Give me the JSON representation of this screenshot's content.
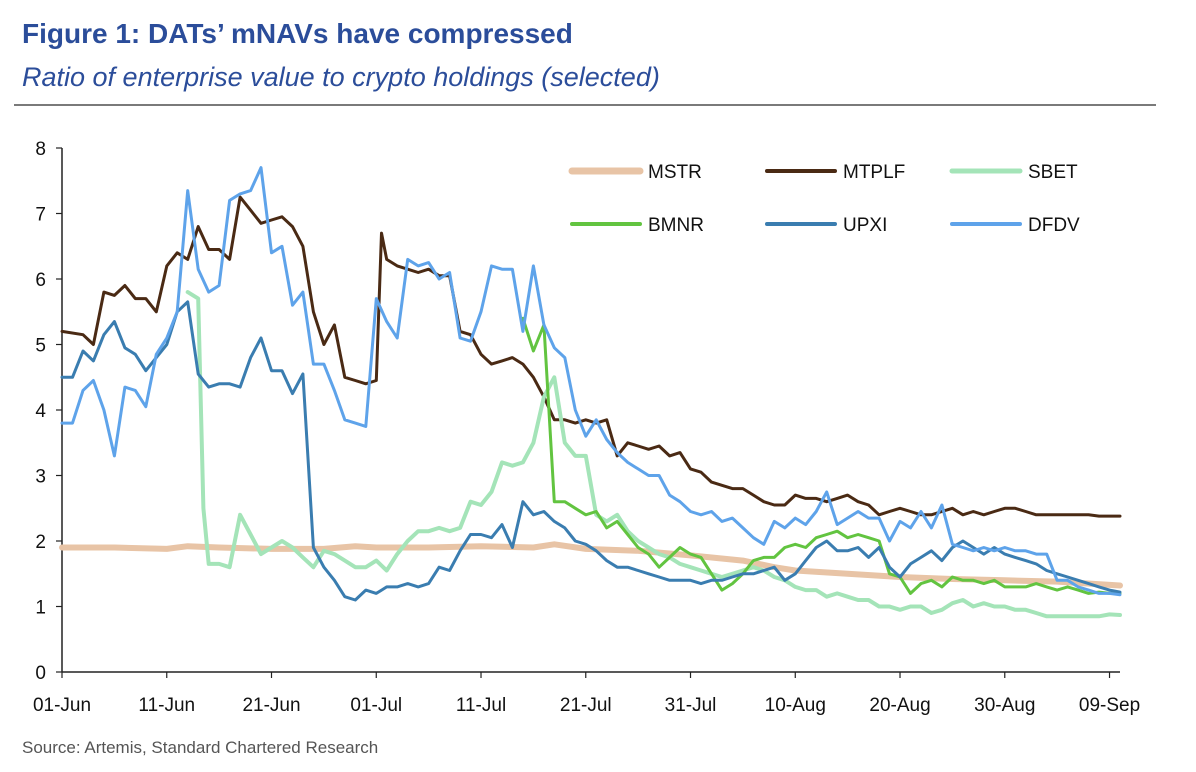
{
  "title": "Figure 1: DATs’ mNAVs have compressed",
  "subtitle": "Ratio of enterprise value to crypto holdings (selected)",
  "source": "Source: Artemis, Standard Chartered Research",
  "chart_data": {
    "type": "line",
    "xlabel": "",
    "ylabel": "",
    "ylim": [
      0,
      8
    ],
    "yticks": [
      0,
      1,
      2,
      3,
      4,
      5,
      6,
      7,
      8
    ],
    "xlim": [
      0,
      101
    ],
    "xtick_positions": [
      0,
      10,
      20,
      30,
      40,
      50,
      60,
      70,
      80,
      90,
      100
    ],
    "xtick_labels": [
      "01-Jun",
      "11-Jun",
      "21-Jun",
      "01-Jul",
      "11-Jul",
      "21-Jul",
      "31-Jul",
      "10-Aug",
      "20-Aug",
      "30-Aug",
      "09-Sep"
    ],
    "legend_position": "top-right",
    "series": [
      {
        "name": "MSTR",
        "color": "#e8c4a6",
        "width": 6,
        "x": [
          0,
          5,
          10,
          12,
          15,
          20,
          25,
          28,
          30,
          35,
          40,
          45,
          47,
          50,
          55,
          60,
          65,
          68,
          70,
          75,
          80,
          85,
          90,
          95,
          101
        ],
        "y": [
          1.9,
          1.9,
          1.88,
          1.92,
          1.9,
          1.88,
          1.88,
          1.92,
          1.9,
          1.9,
          1.92,
          1.9,
          1.95,
          1.88,
          1.85,
          1.78,
          1.7,
          1.6,
          1.55,
          1.5,
          1.45,
          1.42,
          1.4,
          1.38,
          1.32
        ]
      },
      {
        "name": "MTPLF",
        "color": "#4a2a14",
        "width": 3,
        "x": [
          0,
          2,
          3,
          4,
          5,
          6,
          7,
          8,
          9,
          10,
          11,
          12,
          13,
          14,
          15,
          16,
          17,
          18,
          19,
          20,
          21,
          22,
          23,
          24,
          25,
          26,
          27,
          28,
          29,
          30,
          30.5,
          31,
          32,
          33,
          34,
          35,
          36,
          37,
          38,
          39,
          40,
          41,
          42,
          43,
          44,
          45,
          46,
          47,
          48,
          49,
          50,
          51,
          52,
          53,
          54,
          55,
          56,
          57,
          58,
          59,
          60,
          61,
          62,
          63,
          64,
          65,
          66,
          67,
          68,
          69,
          70,
          71,
          72,
          73,
          74,
          75,
          76,
          77,
          78,
          79,
          80,
          81,
          82,
          83,
          84,
          85,
          86,
          87,
          88,
          89,
          90,
          91,
          92,
          93,
          94,
          95,
          96,
          97,
          98,
          99,
          100,
          101
        ],
        "y": [
          5.2,
          5.15,
          5,
          5.8,
          5.75,
          5.9,
          5.7,
          5.7,
          5.5,
          6.2,
          6.4,
          6.3,
          6.8,
          6.45,
          6.45,
          6.3,
          7.25,
          7.05,
          6.85,
          6.9,
          6.95,
          6.8,
          6.5,
          5.5,
          5,
          5.3,
          4.5,
          4.45,
          4.4,
          4.45,
          6.7,
          6.3,
          6.2,
          6.15,
          6.1,
          6.15,
          6.05,
          6.05,
          5.2,
          5.15,
          4.85,
          4.7,
          4.75,
          4.8,
          4.7,
          4.5,
          4.2,
          3.85,
          3.85,
          3.8,
          3.85,
          3.8,
          3.85,
          3.3,
          3.5,
          3.45,
          3.4,
          3.45,
          3.3,
          3.35,
          3.1,
          3.05,
          2.9,
          2.85,
          2.8,
          2.8,
          2.7,
          2.6,
          2.55,
          2.55,
          2.7,
          2.65,
          2.65,
          2.6,
          2.65,
          2.7,
          2.6,
          2.55,
          2.4,
          2.45,
          2.5,
          2.45,
          2.4,
          2.4,
          2.45,
          2.5,
          2.4,
          2.45,
          2.4,
          2.45,
          2.5,
          2.5,
          2.45,
          2.4,
          2.4,
          2.4,
          2.4,
          2.4,
          2.4,
          2.38,
          2.38,
          2.38
        ]
      },
      {
        "name": "SBET",
        "color": "#a4e4b8",
        "width": 4,
        "x": [
          12,
          13,
          13.5,
          14,
          15,
          16,
          17,
          18,
          19,
          20,
          21,
          22,
          23,
          24,
          25,
          26,
          27,
          28,
          29,
          30,
          31,
          32,
          33,
          34,
          35,
          36,
          37,
          38,
          39,
          40,
          41,
          42,
          43,
          44,
          45,
          46,
          47,
          48,
          49,
          50,
          51,
          52,
          53,
          54,
          55,
          56,
          57,
          58,
          59,
          60,
          61,
          62,
          63,
          64,
          65,
          66,
          67,
          68,
          69,
          70,
          71,
          72,
          73,
          74,
          75,
          76,
          77,
          78,
          79,
          80,
          81,
          82,
          83,
          84,
          85,
          86,
          87,
          88,
          89,
          90,
          91,
          92,
          93,
          94,
          95,
          96,
          97,
          98,
          99,
          100,
          101
        ],
        "y": [
          5.8,
          5.7,
          2.5,
          1.65,
          1.65,
          1.6,
          2.4,
          2.1,
          1.8,
          1.9,
          2,
          1.9,
          1.75,
          1.6,
          1.85,
          1.8,
          1.7,
          1.6,
          1.6,
          1.7,
          1.55,
          1.8,
          2,
          2.15,
          2.15,
          2.2,
          2.15,
          2.2,
          2.6,
          2.55,
          2.75,
          3.2,
          3.15,
          3.2,
          3.5,
          4.2,
          4.5,
          3.5,
          3.3,
          3.3,
          2.4,
          2.3,
          2.4,
          2.15,
          2.0,
          1.9,
          1.8,
          1.75,
          1.65,
          1.6,
          1.55,
          1.5,
          1.45,
          1.5,
          1.55,
          1.6,
          1.55,
          1.45,
          1.4,
          1.3,
          1.25,
          1.25,
          1.15,
          1.2,
          1.15,
          1.1,
          1.1,
          1.0,
          1.0,
          0.95,
          1.0,
          1.0,
          0.9,
          0.95,
          1.05,
          1.1,
          1.0,
          1.05,
          1.0,
          1.0,
          0.95,
          0.95,
          0.9,
          0.85,
          0.85,
          0.85,
          0.85,
          0.85,
          0.85,
          0.88,
          0.87
        ]
      },
      {
        "name": "BMNR",
        "color": "#62c440",
        "width": 3,
        "x": [
          44,
          45,
          46,
          47,
          48,
          49,
          50,
          51,
          52,
          53,
          54,
          55,
          56,
          57,
          58,
          59,
          60,
          61,
          62,
          63,
          64,
          65,
          66,
          67,
          68,
          69,
          70,
          71,
          72,
          73,
          74,
          75,
          76,
          77,
          78,
          79,
          80,
          81,
          82,
          83,
          84,
          85,
          86,
          87,
          88,
          89,
          90,
          91,
          92,
          93,
          94,
          95,
          96,
          97,
          98,
          99,
          100,
          101
        ],
        "y": [
          5.4,
          4.9,
          5.3,
          2.6,
          2.6,
          2.5,
          2.4,
          2.45,
          2.2,
          2.3,
          2.1,
          1.9,
          1.8,
          1.6,
          1.75,
          1.9,
          1.8,
          1.75,
          1.5,
          1.25,
          1.35,
          1.5,
          1.7,
          1.75,
          1.75,
          1.9,
          1.95,
          1.9,
          2.05,
          2.1,
          2.15,
          2.05,
          2.1,
          2.05,
          2.0,
          1.5,
          1.45,
          1.2,
          1.35,
          1.4,
          1.3,
          1.45,
          1.4,
          1.4,
          1.35,
          1.4,
          1.3,
          1.3,
          1.3,
          1.35,
          1.3,
          1.25,
          1.3,
          1.25,
          1.2,
          1.22,
          1.2,
          1.2
        ]
      },
      {
        "name": "UPXI",
        "color": "#3a7db0",
        "width": 3,
        "x": [
          0,
          1,
          2,
          3,
          4,
          5,
          6,
          7,
          8,
          9,
          10,
          11,
          12,
          13,
          14,
          15,
          16,
          17,
          18,
          19,
          20,
          21,
          22,
          23,
          24,
          25,
          26,
          27,
          28,
          29,
          30,
          31,
          32,
          33,
          34,
          35,
          36,
          37,
          38,
          39,
          40,
          41,
          42,
          43,
          44,
          45,
          46,
          47,
          48,
          49,
          50,
          51,
          52,
          53,
          54,
          55,
          56,
          57,
          58,
          59,
          60,
          61,
          62,
          63,
          64,
          65,
          66,
          67,
          68,
          69,
          70,
          71,
          72,
          73,
          74,
          75,
          76,
          77,
          78,
          79,
          80,
          81,
          82,
          83,
          84,
          85,
          86,
          87,
          88,
          89,
          90,
          91,
          92,
          93,
          94,
          95,
          96,
          97,
          98,
          99,
          100,
          101
        ],
        "y": [
          4.5,
          4.5,
          4.9,
          4.75,
          5.15,
          5.35,
          4.95,
          4.85,
          4.6,
          4.8,
          5.0,
          5.5,
          5.65,
          4.55,
          4.35,
          4.4,
          4.4,
          4.35,
          4.8,
          5.1,
          4.6,
          4.6,
          4.25,
          4.55,
          1.9,
          1.6,
          1.4,
          1.15,
          1.1,
          1.25,
          1.2,
          1.3,
          1.3,
          1.35,
          1.3,
          1.35,
          1.6,
          1.55,
          1.85,
          2.1,
          2.1,
          2.05,
          2.25,
          1.9,
          2.6,
          2.4,
          2.45,
          2.3,
          2.2,
          2.0,
          1.95,
          1.85,
          1.7,
          1.6,
          1.6,
          1.55,
          1.5,
          1.45,
          1.4,
          1.4,
          1.4,
          1.35,
          1.4,
          1.4,
          1.45,
          1.5,
          1.5,
          1.55,
          1.6,
          1.4,
          1.5,
          1.7,
          1.9,
          2.0,
          1.85,
          1.85,
          1.9,
          1.75,
          1.9,
          1.6,
          1.45,
          1.65,
          1.75,
          1.85,
          1.7,
          1.9,
          2.0,
          1.9,
          1.8,
          1.9,
          1.8,
          1.75,
          1.7,
          1.65,
          1.55,
          1.5,
          1.45,
          1.4,
          1.35,
          1.3,
          1.25,
          1.22
        ]
      },
      {
        "name": "DFDV",
        "color": "#5ea3ea",
        "width": 3,
        "x": [
          0,
          1,
          2,
          3,
          4,
          5,
          6,
          7,
          8,
          9,
          10,
          11,
          12,
          13,
          14,
          15,
          16,
          17,
          18,
          19,
          20,
          21,
          22,
          23,
          24,
          25,
          26,
          27,
          28,
          29,
          30,
          31,
          32,
          33,
          34,
          35,
          36,
          37,
          38,
          39,
          40,
          41,
          42,
          43,
          44,
          45,
          46,
          47,
          48,
          49,
          50,
          51,
          52,
          53,
          54,
          55,
          56,
          57,
          58,
          59,
          60,
          61,
          62,
          63,
          64,
          65,
          66,
          67,
          68,
          69,
          70,
          71,
          72,
          73,
          74,
          75,
          76,
          77,
          78,
          79,
          80,
          81,
          82,
          83,
          84,
          85,
          86,
          87,
          88,
          89,
          90,
          91,
          92,
          93,
          94,
          95,
          96,
          97,
          98,
          99,
          100,
          101
        ],
        "y": [
          3.8,
          3.8,
          4.3,
          4.45,
          4.0,
          3.3,
          4.35,
          4.3,
          4.05,
          4.85,
          5.1,
          5.5,
          7.35,
          6.15,
          5.8,
          5.9,
          7.2,
          7.3,
          7.35,
          7.7,
          6.4,
          6.5,
          5.6,
          5.8,
          4.7,
          4.7,
          4.3,
          3.85,
          3.8,
          3.75,
          5.7,
          5.35,
          5.1,
          6.3,
          6.2,
          6.25,
          6.0,
          6.1,
          5.1,
          5.05,
          5.5,
          6.2,
          6.15,
          6.15,
          5.2,
          6.2,
          5.3,
          4.95,
          4.8,
          4.0,
          3.6,
          3.85,
          3.55,
          3.35,
          3.2,
          3.1,
          3.0,
          3.0,
          2.7,
          2.6,
          2.45,
          2.4,
          2.45,
          2.3,
          2.35,
          2.2,
          2.05,
          1.95,
          2.3,
          2.2,
          2.35,
          2.25,
          2.45,
          2.75,
          2.25,
          2.35,
          2.45,
          2.35,
          2.35,
          2.0,
          2.3,
          2.2,
          2.45,
          2.2,
          2.55,
          1.95,
          1.9,
          1.85,
          1.9,
          1.85,
          1.9,
          1.85,
          1.85,
          1.8,
          1.8,
          1.4,
          1.4,
          1.3,
          1.25,
          1.2,
          1.2,
          1.18
        ]
      }
    ]
  }
}
